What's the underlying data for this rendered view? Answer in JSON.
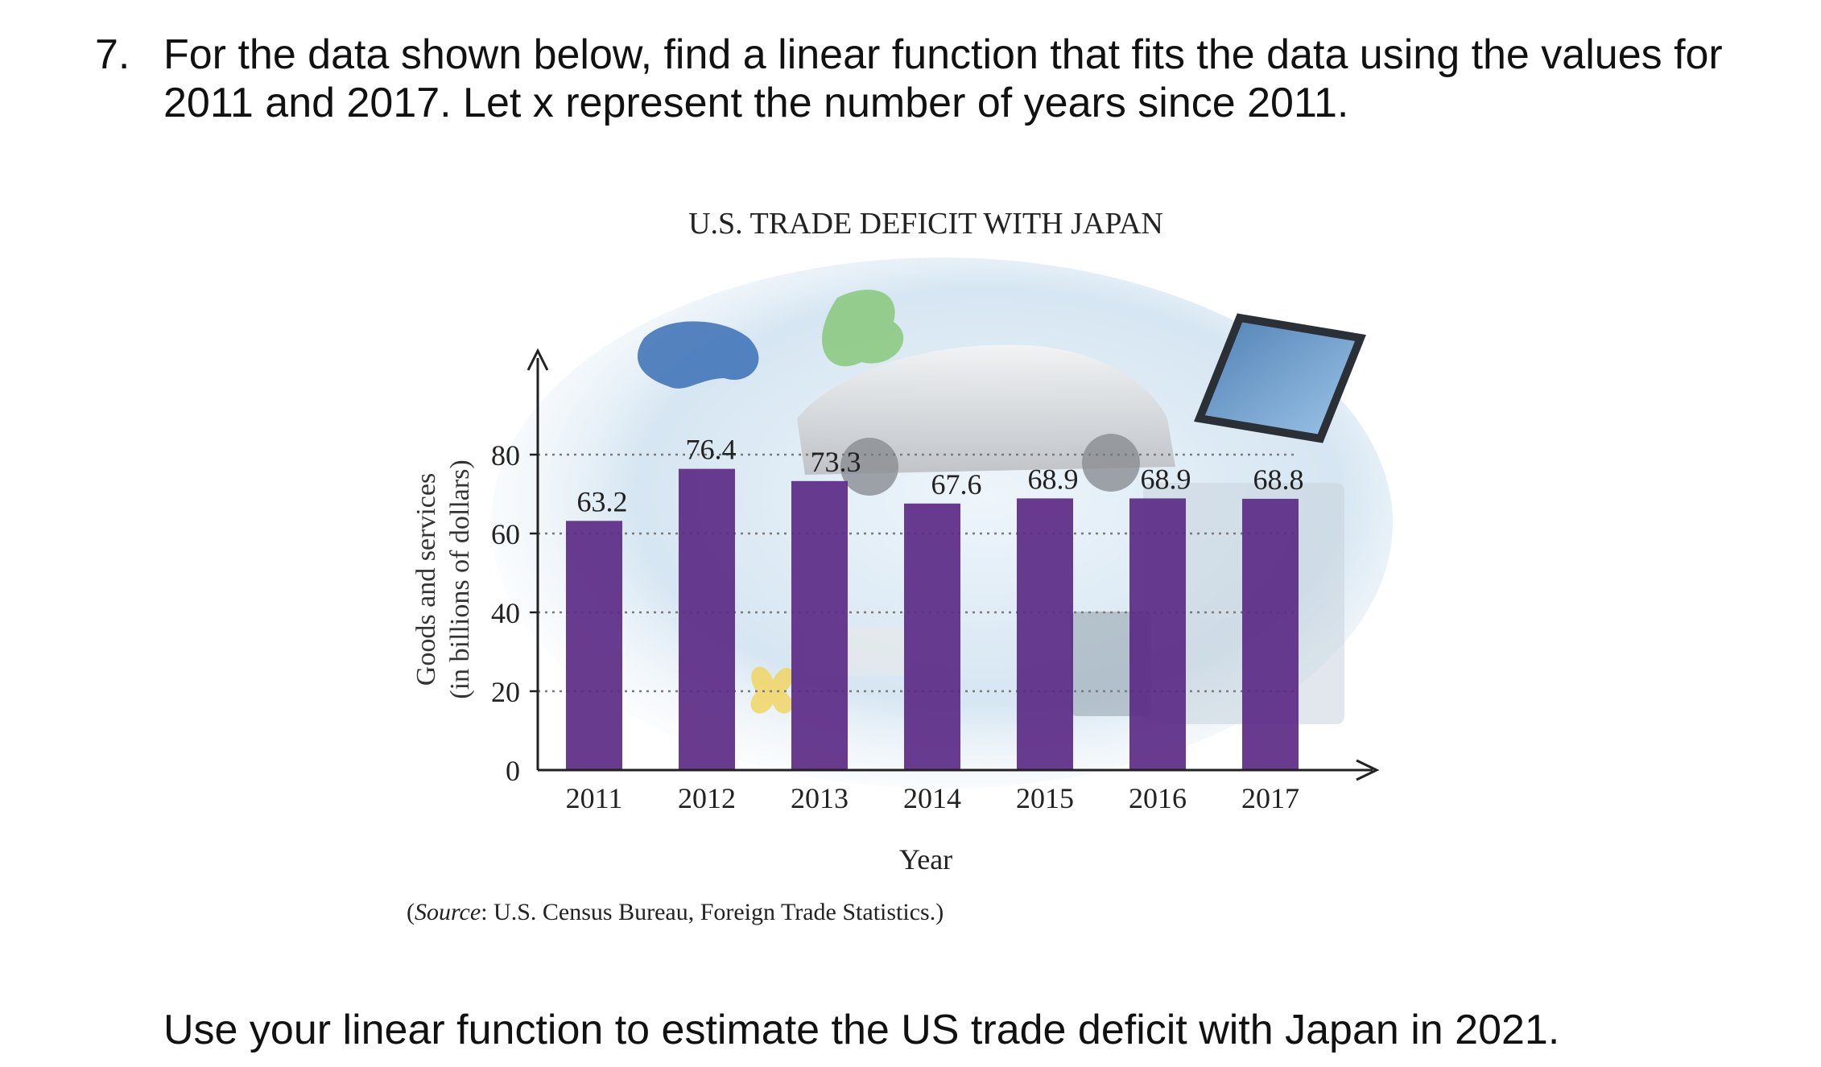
{
  "question": {
    "number": "7.",
    "text": "For the data shown below, find a linear function that fits the data using the values for 2011 and 2017. Let x represent the number of years since 2011.",
    "followup": "Use your linear function to estimate the US trade deficit with Japan in 2021."
  },
  "chart_data": {
    "type": "bar",
    "title": "U.S. TRADE DEFICIT WITH JAPAN",
    "categories": [
      "2011",
      "2012",
      "2013",
      "2014",
      "2015",
      "2016",
      "2017"
    ],
    "values": [
      63.2,
      76.4,
      73.3,
      67.6,
      68.9,
      68.9,
      68.8
    ],
    "data_labels": [
      "63.2",
      "76.4",
      "73.3",
      "67.6",
      "68.9",
      "68.9",
      "68.8"
    ],
    "xlabel": "Year",
    "ylabel_line1": "Goods and services",
    "ylabel_line2": "(in billions of dollars)",
    "yticks": [
      "0",
      "20",
      "40",
      "60",
      "80"
    ],
    "ylim": [
      0,
      80
    ],
    "grid": true,
    "source_prefix": "(",
    "source_italic": "Source",
    "source_rest": ": U.S. Census Bureau, Foreign Trade Statistics.)",
    "colors": {
      "bar": "#5b2a86",
      "background": "#dbeaf5",
      "grid": "#7a7a7a"
    }
  }
}
